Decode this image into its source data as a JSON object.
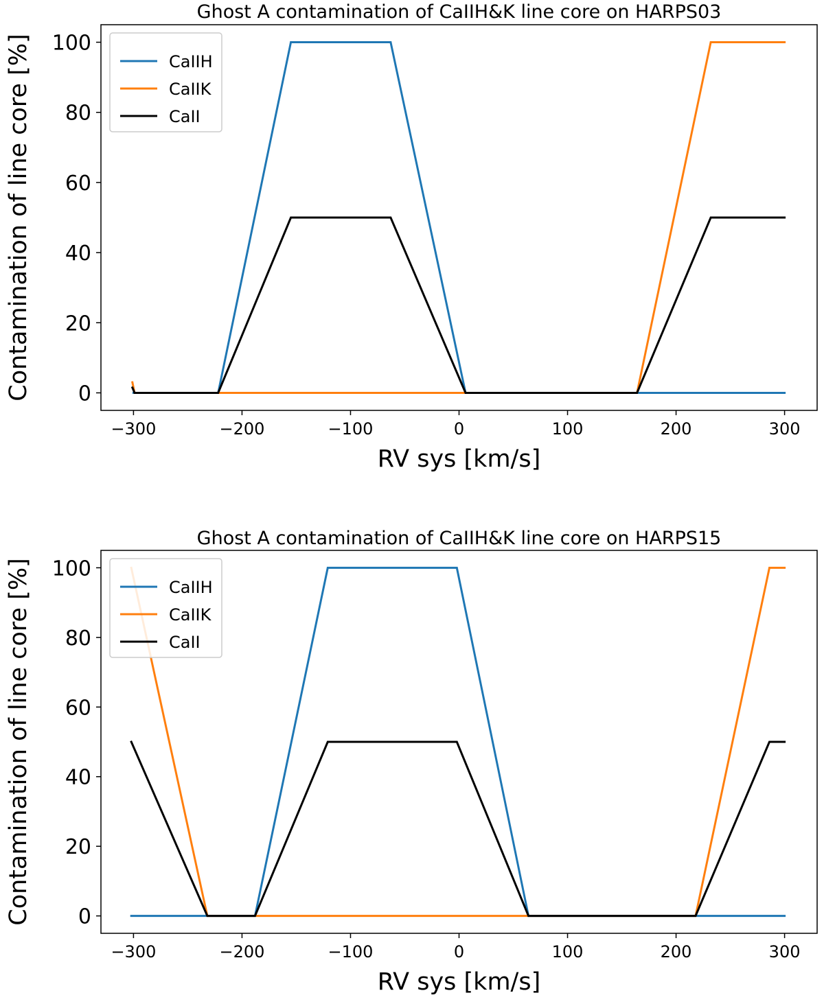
{
  "chart_data": [
    {
      "type": "line",
      "title": "Ghost A contamination of CaIIH&K line core on HARPS03",
      "xlabel": "RV sys [km/s]",
      "ylabel": "Contamination of line core [%]",
      "xlim": [
        -330,
        330
      ],
      "ylim": [
        -5,
        105
      ],
      "xticks": [
        -300,
        -200,
        -100,
        0,
        100,
        200,
        300
      ],
      "xtick_labels": [
        "−300",
        "−200",
        "−100",
        "0",
        "100",
        "200",
        "300"
      ],
      "yticks": [
        0,
        20,
        40,
        60,
        80,
        100
      ],
      "ytick_labels": [
        "0",
        "20",
        "40",
        "60",
        "80",
        "100"
      ],
      "legend_position": "upper-left",
      "series": [
        {
          "name": "CaIIH",
          "color": "#1f77b4",
          "x": [
            -300,
            -297,
            -222,
            -155,
            -63,
            6,
            300
          ],
          "y": [
            0,
            0,
            0,
            100,
            100,
            0,
            0
          ]
        },
        {
          "name": "CaIIK",
          "color": "#ff7f0e",
          "x": [
            -301,
            -299,
            -297,
            164,
            232,
            300
          ],
          "y": [
            3,
            0,
            0,
            0,
            100,
            100
          ]
        },
        {
          "name": "CaII",
          "color": "#000000",
          "x": [
            -301,
            -299,
            -297,
            -222,
            -155,
            -63,
            6,
            164,
            232,
            300
          ],
          "y": [
            1.5,
            0,
            0,
            0,
            50,
            50,
            0,
            0,
            50,
            50
          ]
        }
      ]
    },
    {
      "type": "line",
      "title": "Ghost A contamination of CaIIH&K line core on HARPS15",
      "xlabel": "RV sys [km/s]",
      "ylabel": "Contamination of line core [%]",
      "xlim": [
        -330,
        330
      ],
      "ylim": [
        -5,
        105
      ],
      "xticks": [
        -300,
        -200,
        -100,
        0,
        100,
        200,
        300
      ],
      "xtick_labels": [
        "−300",
        "−200",
        "−100",
        "0",
        "100",
        "200",
        "300"
      ],
      "yticks": [
        0,
        20,
        40,
        60,
        80,
        100
      ],
      "ytick_labels": [
        "0",
        "20",
        "40",
        "60",
        "80",
        "100"
      ],
      "legend_position": "upper-left",
      "series": [
        {
          "name": "CaIIH",
          "color": "#1f77b4",
          "x": [
            -302,
            -188,
            -121,
            -2,
            64,
            300
          ],
          "y": [
            0,
            0,
            100,
            100,
            0,
            0
          ]
        },
        {
          "name": "CaIIK",
          "color": "#ff7f0e",
          "x": [
            -302,
            -232,
            218,
            286,
            300
          ],
          "y": [
            100,
            0,
            0,
            100,
            100
          ]
        },
        {
          "name": "CaII",
          "color": "#000000",
          "x": [
            -302,
            -232,
            -188,
            -121,
            -2,
            64,
            218,
            286,
            300
          ],
          "y": [
            50,
            0,
            0,
            50,
            50,
            0,
            0,
            50,
            50
          ]
        }
      ]
    }
  ]
}
